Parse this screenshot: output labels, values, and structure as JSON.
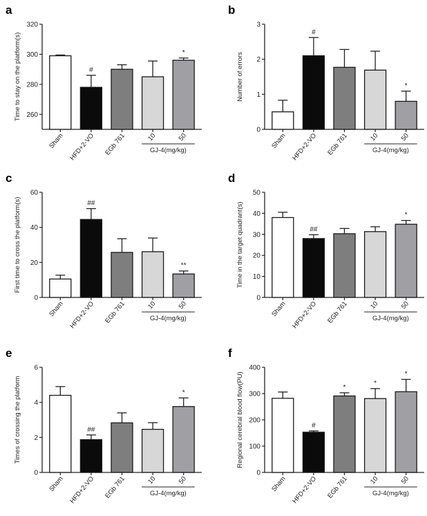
{
  "chart_data": [
    {
      "panel": "a",
      "type": "bar",
      "ylabel": "Time to stay on the platform(s)",
      "ylim": [
        250,
        320
      ],
      "yticks": [
        260,
        280,
        300,
        320
      ],
      "categories": [
        "Sham",
        "HFD+2-VO",
        "EGb 761",
        "10",
        "50"
      ],
      "group_label": "GJ-4(mg/kg)",
      "values": [
        299,
        278,
        290,
        285,
        296
      ],
      "errors": [
        0.5,
        8,
        3,
        10.5,
        1.5
      ],
      "annotations": [
        "",
        "#",
        "",
        "",
        "*"
      ]
    },
    {
      "panel": "b",
      "type": "bar",
      "ylabel": "Number of errors",
      "ylim": [
        0,
        3
      ],
      "yticks": [
        0,
        1,
        2,
        3
      ],
      "categories": [
        "Sham",
        "HFD+2-VO",
        "EGb 761",
        "10",
        "50"
      ],
      "group_label": "GJ-4(mg/kg)",
      "values": [
        0.5,
        2.1,
        1.77,
        1.69,
        0.8
      ],
      "errors": [
        0.33,
        0.52,
        0.51,
        0.54,
        0.29
      ],
      "annotations": [
        "",
        "#",
        "",
        "",
        "*"
      ]
    },
    {
      "panel": "c",
      "type": "bar",
      "ylabel": "First time to cross the platform(s)",
      "ylim": [
        0,
        60
      ],
      "yticks": [
        0,
        20,
        40,
        60
      ],
      "categories": [
        "Sham",
        "HFD+2-VO",
        "EGb 761",
        "10",
        "50"
      ],
      "group_label": "GJ-4(mg/kg)",
      "values": [
        10.5,
        44.5,
        25.7,
        26.1,
        13.4
      ],
      "errors": [
        2.2,
        6.2,
        7.8,
        7.8,
        1.7
      ],
      "annotations": [
        "",
        "##",
        "",
        "",
        "**"
      ]
    },
    {
      "panel": "d",
      "type": "bar",
      "ylabel": "Time in the target quadrant(s)",
      "ylim": [
        0,
        50
      ],
      "yticks": [
        0,
        10,
        20,
        30,
        40,
        50
      ],
      "categories": [
        "Sham",
        "HFD+2-VO",
        "EGb 761",
        "10",
        "50"
      ],
      "group_label": "GJ-4(mg/kg)",
      "values": [
        38,
        28,
        30.3,
        31.3,
        34.8
      ],
      "errors": [
        2.5,
        1.8,
        2.5,
        2.3,
        1.8
      ],
      "annotations": [
        "",
        "##",
        "",
        "",
        "*"
      ]
    },
    {
      "panel": "e",
      "type": "bar",
      "ylabel": "Times of crossing the platform",
      "ylim": [
        0,
        6
      ],
      "yticks": [
        0,
        2,
        4,
        6
      ],
      "categories": [
        "Sham",
        "HFD+2-VO",
        "EGb 761",
        "10",
        "50"
      ],
      "group_label": "GJ-4(mg/kg)",
      "values": [
        4.4,
        1.87,
        2.83,
        2.46,
        3.76
      ],
      "errors": [
        0.5,
        0.27,
        0.57,
        0.38,
        0.49
      ],
      "annotations": [
        "",
        "##",
        "",
        "",
        "*"
      ]
    },
    {
      "panel": "f",
      "type": "bar",
      "ylabel": "Regional cerebral blood flow(PU)",
      "ylim": [
        0,
        400
      ],
      "yticks": [
        0,
        100,
        200,
        300,
        400
      ],
      "categories": [
        "Sham",
        "HFD+2-VO",
        "EGb 761",
        "10",
        "50"
      ],
      "group_label": "GJ-4(mg/kg)",
      "values": [
        282,
        153,
        291,
        281,
        307
      ],
      "errors": [
        24,
        5,
        12,
        38,
        47
      ],
      "annotations": [
        "",
        "#",
        "*",
        "*",
        "*"
      ]
    }
  ],
  "bar_colors": [
    "#ffffff",
    "#0b0b0b",
    "#7e7e7e",
    "#d7d7d7",
    "#a0a0a4"
  ]
}
